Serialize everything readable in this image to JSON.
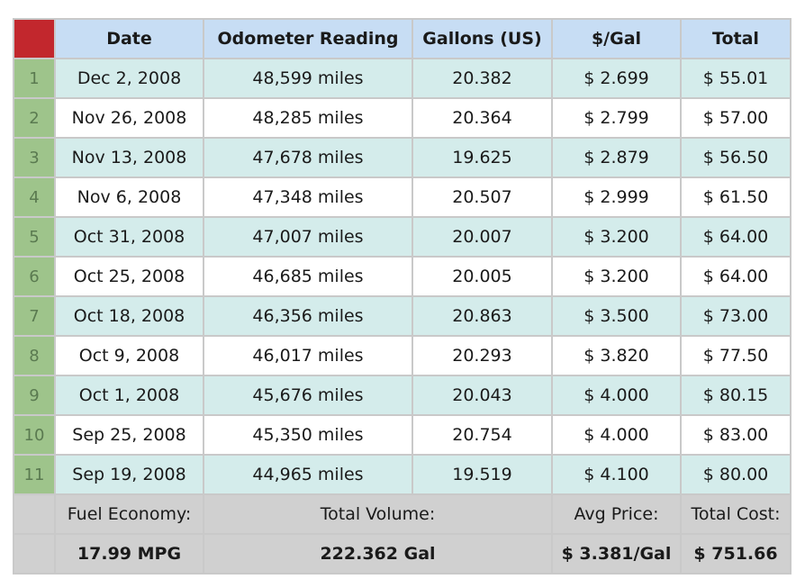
{
  "table": {
    "headers": [
      "Date",
      "Odometer Reading",
      "Gallons (US)",
      "$/Gal",
      "Total"
    ],
    "rows": [
      {
        "num": "1",
        "date": "Dec 2, 2008",
        "odometer": "48,599 miles",
        "gallons": "20.382",
        "price": "$ 2.699",
        "total": "$ 55.01"
      },
      {
        "num": "2",
        "date": "Nov 26, 2008",
        "odometer": "48,285 miles",
        "gallons": "20.364",
        "price": "$ 2.799",
        "total": "$ 57.00"
      },
      {
        "num": "3",
        "date": "Nov 13, 2008",
        "odometer": "47,678 miles",
        "gallons": "19.625",
        "price": "$ 2.879",
        "total": "$ 56.50"
      },
      {
        "num": "4",
        "date": "Nov 6, 2008",
        "odometer": "47,348 miles",
        "gallons": "20.507",
        "price": "$ 2.999",
        "total": "$ 61.50"
      },
      {
        "num": "5",
        "date": "Oct 31, 2008",
        "odometer": "47,007 miles",
        "gallons": "20.007",
        "price": "$ 3.200",
        "total": "$ 64.00"
      },
      {
        "num": "6",
        "date": "Oct 25, 2008",
        "odometer": "46,685 miles",
        "gallons": "20.005",
        "price": "$ 3.200",
        "total": "$ 64.00"
      },
      {
        "num": "7",
        "date": "Oct 18, 2008",
        "odometer": "46,356 miles",
        "gallons": "20.863",
        "price": "$ 3.500",
        "total": "$ 73.00"
      },
      {
        "num": "8",
        "date": "Oct 9, 2008",
        "odometer": "46,017 miles",
        "gallons": "20.293",
        "price": "$ 3.820",
        "total": "$ 77.50"
      },
      {
        "num": "9",
        "date": "Oct 1, 2008",
        "odometer": "45,676 miles",
        "gallons": "20.043",
        "price": "$ 4.000",
        "total": "$ 80.15"
      },
      {
        "num": "10",
        "date": "Sep 25, 2008",
        "odometer": "45,350 miles",
        "gallons": "20.754",
        "price": "$ 4.000",
        "total": "$ 83.00"
      },
      {
        "num": "11",
        "date": "Sep 19, 2008",
        "odometer": "44,965 miles",
        "gallons": "19.519",
        "price": "$ 4.100",
        "total": "$ 80.00"
      }
    ]
  },
  "summary": {
    "labels": {
      "fuel_economy": "Fuel Economy:",
      "total_volume": "Total Volume:",
      "avg_price": "Avg Price:",
      "total_cost": "Total Cost:"
    },
    "values": {
      "fuel_economy": "17.99 MPG",
      "total_volume": "222.362 Gal",
      "avg_price": "$ 3.381/Gal",
      "total_cost": "$ 751.66"
    }
  },
  "colors": {
    "corner": "#c2272d",
    "header": "#c7ddf4",
    "row_number": "#9ec48b",
    "row_alt": "#d4eceb",
    "summary": "#d0d0d0"
  }
}
